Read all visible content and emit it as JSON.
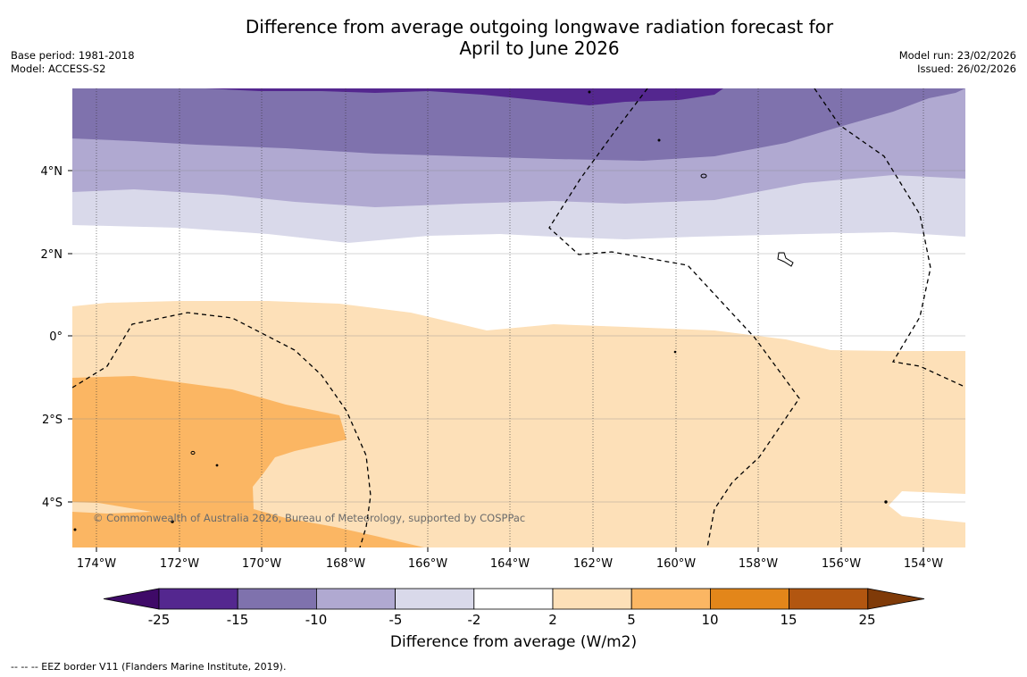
{
  "title": {
    "line1": "Difference from average outgoing longwave radiation forecast for",
    "line2": "April to June 2026"
  },
  "meta": {
    "base_period": "Base period: 1981-2018",
    "model": "Model: ACCESS-S2",
    "model_run": "Model run: 23/02/2026",
    "issued": "Issued: 26/02/2026"
  },
  "map": {
    "lon_labels": [
      "174°W",
      "172°W",
      "170°W",
      "168°W",
      "166°W",
      "164°W",
      "162°W",
      "160°W",
      "158°W",
      "156°W",
      "154°W"
    ],
    "lat_labels": [
      "4°N",
      "2°N",
      "0°",
      "2°S",
      "4°S"
    ],
    "copyright": "© Commonwealth of Australia 2026, Bureau of Meteorology, supported by COSPPac"
  },
  "colorbar": {
    "title": "Difference from average (W/m2)",
    "tick_labels": [
      "-25",
      "-15",
      "-10",
      "-5",
      "-2",
      "2",
      "5",
      "10",
      "15",
      "25"
    ],
    "colors": [
      "#3f0a68",
      "#54278f",
      "#7f72ad",
      "#b0a9d1",
      "#d9d9ea",
      "#ffffff",
      "#fde0b8",
      "#fbb663",
      "#e3861a",
      "#b25610",
      "#7f3a08"
    ]
  },
  "footnote": "--  --  -- EEZ border V11 (Flanders Marine Institute, 2019)."
}
